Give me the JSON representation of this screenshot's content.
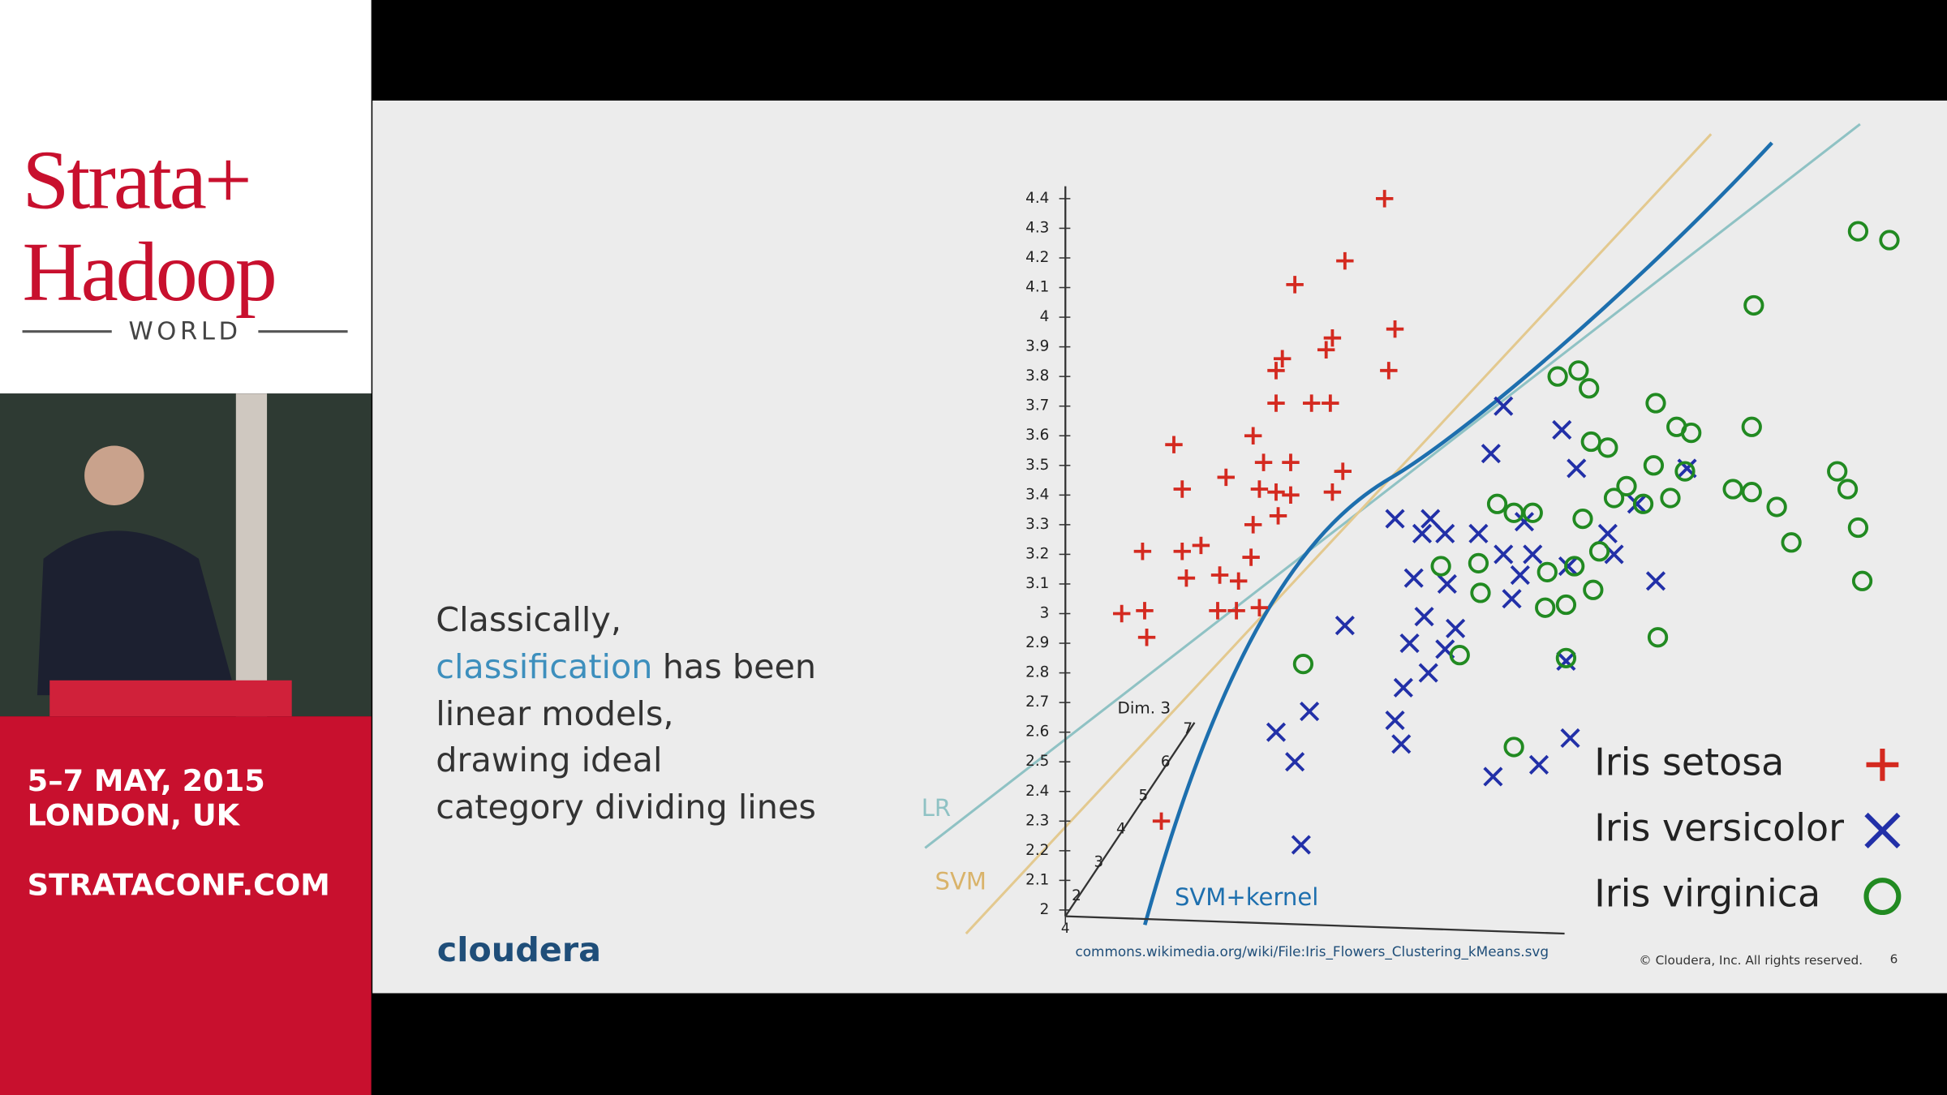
{
  "sidebar": {
    "brand_line1": "Strata+",
    "brand_line2": "Hadoop",
    "brand_line3": "WORLD",
    "dates": "5–7 MAY, 2015",
    "location": "LONDON, UK",
    "url": "STRATACONF.COM"
  },
  "slide": {
    "text_line1": "Classically,",
    "text_highlight": "classification",
    "text_line2_rest": "has been",
    "text_line3": "linear models,",
    "text_line4": "drawing ideal",
    "text_line5": "category dividing lines",
    "logo": "cloudera",
    "source": "commons.wikimedia.org/wiki/File:Iris_Flowers_Clustering_kMeans.svg",
    "copyright": "© Cloudera, Inc. All rights reserved.",
    "page_number": "6",
    "line_labels": {
      "lr": "LR",
      "svm": "SVM",
      "svm_kernel": "SVM+kernel"
    }
  },
  "chart_data": {
    "type": "scatter",
    "xlim": [
      4,
      8
    ],
    "xticks": [
      4
    ],
    "ylim": [
      2,
      4.4
    ],
    "yticks": [
      2,
      2.1,
      2.2,
      2.3,
      2.4,
      2.5,
      2.6,
      2.7,
      2.8,
      2.9,
      3,
      3.1,
      3.2,
      3.3,
      3.4,
      3.5,
      3.6,
      3.7,
      3.8,
      3.9,
      4,
      4.1,
      4.2,
      4.3,
      4.4
    ],
    "zlabel": "Dim. 3",
    "zticks": [
      2,
      3,
      4,
      5,
      6,
      7
    ],
    "series": [
      {
        "name": "Iris setosa",
        "color": "#d42a20",
        "marker": "plus",
        "x": [
          5.53,
          5.34,
          5.1,
          5.58,
          5.28,
          5.25,
          5.04,
          5.01,
          5.55,
          5.01,
          5.18,
          5.27,
          4.52,
          4.9,
          4.95,
          5.08,
          4.77,
          5.33,
          4.56,
          4.93,
          5.01,
          5.08,
          5.28,
          5.02,
          4.9,
          4.37,
          4.56,
          4.65,
          4.89,
          4.74,
          4.83,
          4.58,
          4.93,
          4.73,
          4.82,
          4.27,
          4.38,
          4.39,
          4.46
        ],
        "values": [
          4.4,
          4.19,
          4.11,
          3.96,
          3.93,
          3.89,
          3.86,
          3.82,
          3.82,
          3.71,
          3.71,
          3.71,
          3.57,
          3.6,
          3.51,
          3.51,
          3.46,
          3.48,
          3.42,
          3.42,
          3.41,
          3.4,
          3.41,
          3.33,
          3.3,
          3.21,
          3.21,
          3.23,
          3.19,
          3.13,
          3.11,
          3.12,
          3.02,
          3.01,
          3.01,
          3.0,
          3.01,
          2.92,
          2.3
        ]
      },
      {
        "name": "Iris versicolor",
        "color": "#2230a8",
        "marker": "cross",
        "x": [
          6.1,
          6.38,
          6.04,
          6.45,
          5.58,
          5.75,
          5.71,
          5.82,
          5.98,
          6.2,
          6.1,
          6.24,
          6.6,
          6.74,
          5.67,
          5.83,
          6.18,
          6.41,
          6.63,
          6.83,
          5.34,
          5.72,
          5.87,
          6.14,
          5.65,
          5.82,
          6.4,
          5.74,
          5.62,
          5.17,
          5.58,
          5.01,
          5.61,
          5.1,
          6.05,
          6.27,
          6.42,
          5.13,
          6.98
        ],
        "values": [
          3.7,
          3.62,
          3.54,
          3.49,
          3.32,
          3.32,
          3.27,
          3.27,
          3.27,
          3.31,
          3.2,
          3.2,
          3.27,
          3.37,
          3.12,
          3.1,
          3.13,
          3.16,
          3.2,
          3.11,
          2.96,
          2.99,
          2.95,
          3.05,
          2.9,
          2.88,
          2.84,
          2.8,
          2.75,
          2.67,
          2.64,
          2.6,
          2.56,
          2.5,
          2.45,
          2.49,
          2.58,
          2.22,
          3.49
        ]
      },
      {
        "name": "Iris virginica",
        "color": "#218a21",
        "marker": "circle",
        "x": [
          7.8,
          7.95,
          7.3,
          6.36,
          6.46,
          6.51,
          6.83,
          6.52,
          6.6,
          6.93,
          7.0,
          7.29,
          6.82,
          6.97,
          7.7,
          7.75,
          7.2,
          7.29,
          7.41,
          6.69,
          6.63,
          6.77,
          6.9,
          6.07,
          6.15,
          6.24,
          6.48,
          7.8,
          7.48,
          6.56,
          5.8,
          5.98,
          6.31,
          6.44,
          7.82,
          5.99,
          6.3,
          6.4,
          6.53,
          6.84,
          5.89,
          6.4,
          5.14,
          6.15
        ],
        "values": [
          4.29,
          4.26,
          4.04,
          3.8,
          3.82,
          3.76,
          3.71,
          3.58,
          3.56,
          3.63,
          3.61,
          3.63,
          3.5,
          3.48,
          3.48,
          3.42,
          3.42,
          3.41,
          3.36,
          3.43,
          3.39,
          3.37,
          3.39,
          3.37,
          3.34,
          3.34,
          3.32,
          3.29,
          3.24,
          3.21,
          3.16,
          3.17,
          3.14,
          3.16,
          3.11,
          3.07,
          3.02,
          3.03,
          3.08,
          2.92,
          2.86,
          2.85,
          2.83,
          2.55
        ]
      }
    ]
  }
}
